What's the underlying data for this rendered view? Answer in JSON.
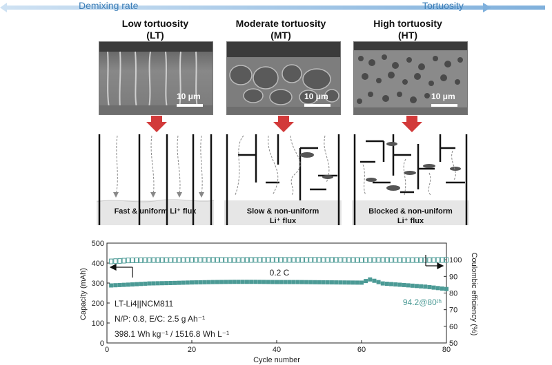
{
  "header": {
    "left_label": "Demixing rate",
    "right_label": "Tortuosity",
    "arrow_color": "#9cc3e4"
  },
  "panels": [
    {
      "title": "Low tortuosity",
      "abbr": "(LT)",
      "scale": "10 μm",
      "flux": [
        "Fast & uniform Li⁺ flux"
      ]
    },
    {
      "title": "Moderate tortuosity",
      "abbr": "(MT)",
      "scale": "10 μm",
      "flux": [
        "Slow & non-uniform",
        "Li⁺ flux"
      ]
    },
    {
      "title": "High tortuosity",
      "abbr": "(HT)",
      "scale": "10 μm",
      "flux": [
        "Blocked & non-uniform",
        "Li⁺ flux"
      ]
    }
  ],
  "colors": {
    "down_arrow": "#d23a3a",
    "capacity": "#4b9a95",
    "efficiency": "#4b9a95"
  },
  "chart": {
    "xlabel": "Cycle number",
    "ylabel_left": "Capacity (mAh)",
    "ylabel_right": "Coulombic efficiency (%)",
    "rate_label": "0.2 C",
    "retention_label": "94.2@80ᵗʰ",
    "info": [
      "LT-Li4||NCM811",
      "N/P: 0.8, E/C: 2.5 g Ah⁻¹",
      "398.1 Wh kg⁻¹ / 1516.8 Wh L⁻¹"
    ]
  },
  "chart_data": {
    "type": "scatter",
    "x_range": [
      0,
      80
    ],
    "xticks": [
      "0",
      "20",
      "40",
      "60",
      "80"
    ],
    "y_left_range": [
      0,
      500
    ],
    "yticks_left": [
      "0",
      "100",
      "200",
      "300",
      "400",
      "500"
    ],
    "y_right_range": [
      50,
      110
    ],
    "yticks_right": [
      "50",
      "60",
      "70",
      "80",
      "90",
      "100"
    ],
    "series": [
      {
        "axis": "left",
        "marker": "filled-square",
        "x": [
          1,
          5,
          10,
          15,
          20,
          25,
          30,
          35,
          40,
          45,
          50,
          55,
          60,
          62,
          65,
          70,
          75,
          80
        ],
        "y": [
          288,
          292,
          298,
          300,
          303,
          305,
          306,
          306,
          305,
          305,
          304,
          303,
          302,
          318,
          298,
          290,
          282,
          270
        ]
      },
      {
        "axis": "right",
        "marker": "open-square",
        "x": [
          1,
          5,
          10,
          15,
          20,
          25,
          30,
          35,
          40,
          45,
          50,
          55,
          60,
          65,
          70,
          75,
          80
        ],
        "y": [
          99.0,
          99.6,
          99.8,
          99.8,
          99.9,
          99.9,
          99.8,
          99.9,
          99.9,
          99.9,
          99.9,
          99.9,
          99.8,
          99.9,
          99.8,
          99.8,
          99.9
        ]
      }
    ]
  }
}
